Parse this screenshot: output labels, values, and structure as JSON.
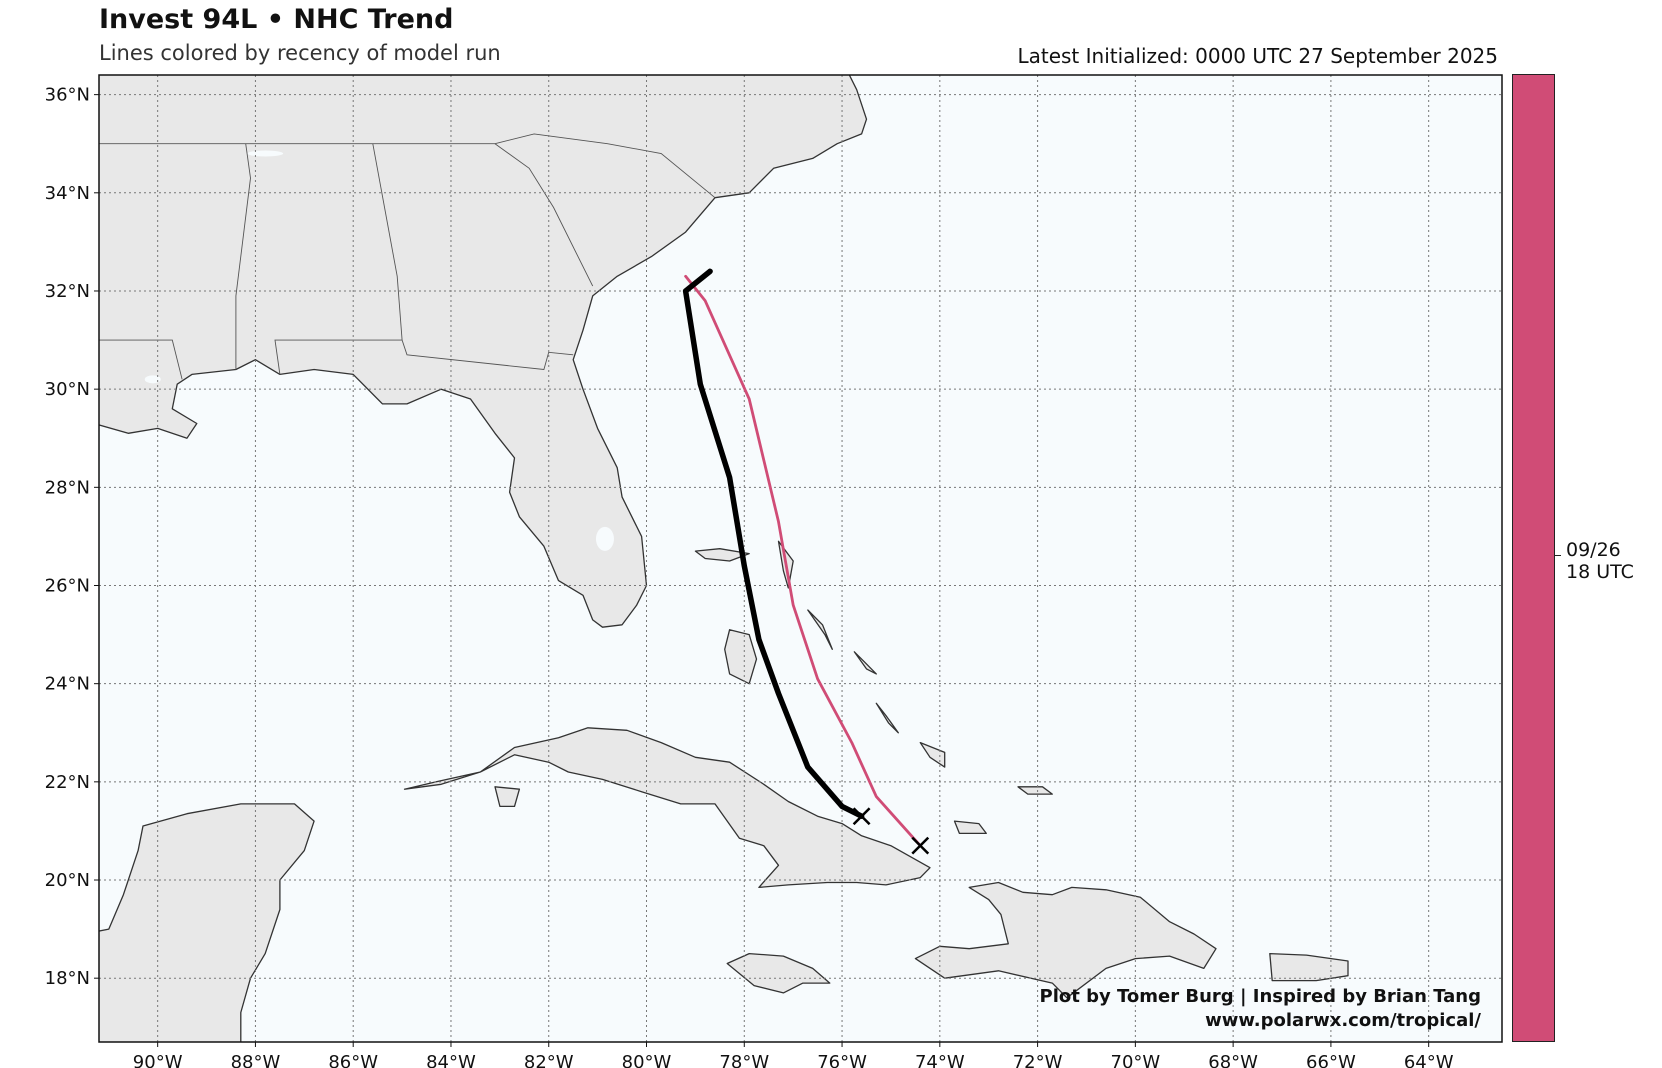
{
  "header": {
    "title": "Invest 94L • NHC Trend",
    "subtitle": "Lines colored by recency of model run",
    "latest": "Latest Initialized: 0000 UTC 27 September 2025"
  },
  "credits": {
    "line1": "Plot by Tomer Burg | Inspired by Brian Tang",
    "line2": "www.polarwx.com/tropical/"
  },
  "colorbar": {
    "color": "#d04c76",
    "label_line1": "09/26",
    "label_line2": "18 UTC"
  },
  "map": {
    "lon_range": [
      -91.2,
      -62.5
    ],
    "lat_range": [
      16.7,
      36.4
    ],
    "lon_ticks": [
      {
        "v": -90,
        "t": "90°W"
      },
      {
        "v": -88,
        "t": "88°W"
      },
      {
        "v": -86,
        "t": "86°W"
      },
      {
        "v": -84,
        "t": "84°W"
      },
      {
        "v": -82,
        "t": "82°W"
      },
      {
        "v": -80,
        "t": "80°W"
      },
      {
        "v": -78,
        "t": "78°W"
      },
      {
        "v": -76,
        "t": "76°W"
      },
      {
        "v": -74,
        "t": "74°W"
      },
      {
        "v": -72,
        "t": "72°W"
      },
      {
        "v": -70,
        "t": "70°W"
      },
      {
        "v": -68,
        "t": "68°W"
      },
      {
        "v": -66,
        "t": "66°W"
      },
      {
        "v": -64,
        "t": "64°W"
      }
    ],
    "lat_ticks": [
      {
        "v": 36,
        "t": "36°N"
      },
      {
        "v": 34,
        "t": "34°N"
      },
      {
        "v": 32,
        "t": "32°N"
      },
      {
        "v": 30,
        "t": "30°N"
      },
      {
        "v": 28,
        "t": "28°N"
      },
      {
        "v": 26,
        "t": "26°N"
      },
      {
        "v": 24,
        "t": "24°N"
      },
      {
        "v": 22,
        "t": "22°N"
      },
      {
        "v": 20,
        "t": "20°N"
      },
      {
        "v": 18,
        "t": "18°N"
      }
    ],
    "land_color": "#e8e8e8",
    "ocean_color": "#f7fbfd",
    "tracks": [
      {
        "run": "latest",
        "color": "#000000",
        "points": [
          [
            -75.6,
            21.3
          ],
          [
            -76.0,
            21.5
          ],
          [
            -76.7,
            22.3
          ],
          [
            -77.3,
            23.8
          ],
          [
            -77.7,
            24.9
          ],
          [
            -78.0,
            26.4
          ],
          [
            -78.3,
            28.2
          ],
          [
            -78.9,
            30.1
          ],
          [
            -79.2,
            32.0
          ],
          [
            -78.7,
            32.4
          ]
        ]
      },
      {
        "run": "09/26 18 UTC",
        "color": "#d04c76",
        "points": [
          [
            -74.4,
            20.7
          ],
          [
            -75.3,
            21.7
          ],
          [
            -75.8,
            22.8
          ],
          [
            -76.5,
            24.1
          ],
          [
            -77.0,
            25.6
          ],
          [
            -77.3,
            27.3
          ],
          [
            -77.9,
            29.8
          ],
          [
            -78.8,
            31.8
          ],
          [
            -79.2,
            32.3
          ]
        ]
      }
    ],
    "start_markers": [
      {
        "lon": -75.6,
        "lat": 21.3,
        "color": "#000000"
      },
      {
        "lon": -74.4,
        "lat": 20.7,
        "color": "#000000"
      }
    ]
  }
}
